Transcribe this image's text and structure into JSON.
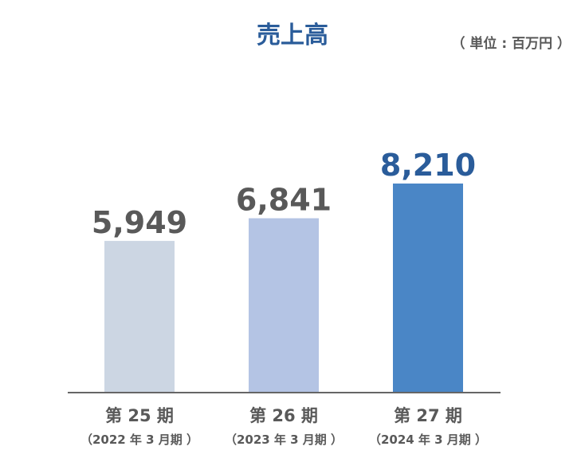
{
  "chart_data": {
    "type": "bar",
    "title": "売上高",
    "unit": "（ 単位 : 百万円 ）",
    "categories": [
      "第 25 期",
      "第 26 期",
      "第 27 期"
    ],
    "subcategories": [
      "（2022 年 3 月期 ）",
      "（2023 年 3 月期 ）",
      "（2024 年 3 月期 ）"
    ],
    "values": [
      5949,
      6841,
      8210
    ],
    "value_labels": [
      "5,949",
      "6,841",
      "8,210"
    ],
    "bar_colors": [
      "#ccd6e3",
      "#b4c4e4",
      "#4a86c6"
    ],
    "highlight_color": "#2a5c9a",
    "text_color": "#595959",
    "highlight_index": 2,
    "xlabel": "",
    "ylabel": "",
    "grid": false,
    "legend": "none"
  }
}
